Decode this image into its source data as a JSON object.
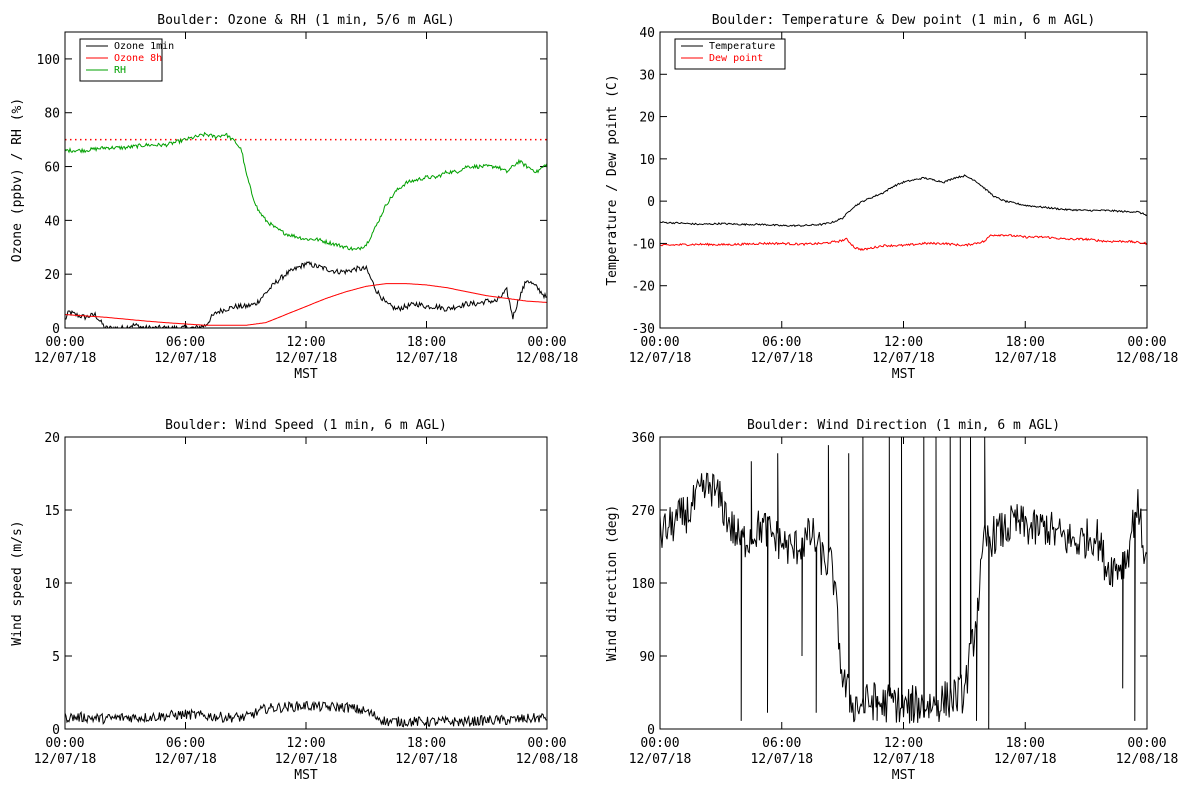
{
  "colors": {
    "black": "#000000",
    "red": "#ff0000",
    "green": "#00a000"
  },
  "x_axis": {
    "xlabel": "MST",
    "tick_times": [
      "00:00",
      "06:00",
      "12:00",
      "18:00",
      "00:00"
    ],
    "tick_dates": [
      "12/07/18",
      "12/07/18",
      "12/07/18",
      "12/07/18",
      "12/08/18"
    ],
    "xlim_hours": [
      0,
      24
    ]
  },
  "chart_data": [
    {
      "type": "line",
      "title": "Boulder: Ozone & RH (1 min, 5/6 m AGL)",
      "ylabel": "Ozone (ppbv) / RH (%)",
      "ylim": [
        0,
        110
      ],
      "yticks": [
        0,
        20,
        40,
        60,
        80,
        100
      ],
      "legend_position": "top-left",
      "reference_line": {
        "y": 70,
        "color": "#ff0000",
        "style": "dotted"
      },
      "series": [
        {
          "name": "Ozone 1min",
          "color": "#000000",
          "noise": 1.0,
          "x": [
            0,
            0.2,
            0.5,
            1.0,
            1.5,
            1.8,
            2.0,
            2.5,
            3.0,
            3.3,
            3.5,
            4.0,
            4.5,
            5.0,
            5.5,
            6.0,
            6.5,
            7.0,
            7.3,
            7.6,
            8.0,
            8.5,
            9.0,
            9.5,
            10.0,
            10.5,
            11.0,
            11.5,
            12.0,
            12.5,
            13.0,
            13.5,
            14.0,
            14.5,
            15.0,
            15.5,
            16.0,
            16.5,
            17.0,
            17.5,
            18.0,
            18.5,
            19.0,
            19.5,
            20.0,
            20.5,
            21.0,
            21.5,
            22.0,
            22.3,
            22.6,
            23.0,
            23.5,
            24.0
          ],
          "y": [
            3,
            6,
            5,
            4,
            5,
            2,
            0,
            0,
            0,
            1,
            1,
            0,
            0,
            0,
            0,
            0,
            0,
            1,
            4,
            6,
            7,
            8,
            8,
            9,
            13,
            17,
            20,
            22,
            24,
            23,
            22,
            21,
            21,
            22,
            22,
            14,
            9,
            7,
            8,
            9,
            8,
            8,
            7,
            8,
            9,
            9,
            10,
            10,
            14,
            4,
            11,
            18,
            15,
            11
          ]
        },
        {
          "name": "Ozone 8h",
          "color": "#ff0000",
          "noise": 0,
          "x": [
            0,
            1,
            2,
            3,
            4,
            5,
            6,
            7,
            8,
            9,
            10,
            11,
            12,
            13,
            14,
            15,
            16,
            17,
            18,
            19,
            20,
            21,
            22,
            23,
            24
          ],
          "y": [
            5,
            4.5,
            4,
            3.3,
            2.6,
            2,
            1.5,
            1,
            1,
            1,
            2,
            5,
            8,
            11,
            13.5,
            15.5,
            16.5,
            16.5,
            16,
            15,
            13.5,
            12,
            11,
            10,
            9.5
          ]
        },
        {
          "name": "RH",
          "color": "#00a000",
          "noise": 0.7,
          "x": [
            0,
            1,
            2,
            3,
            4,
            5,
            6,
            7,
            7.5,
            8,
            8.5,
            8.8,
            9.0,
            9.3,
            9.6,
            10,
            10.5,
            11,
            11.5,
            12,
            12.5,
            13,
            13.5,
            14,
            14.5,
            15,
            15.5,
            16,
            16.5,
            17,
            17.5,
            18,
            18.5,
            19,
            19.5,
            20,
            20.5,
            21,
            21.5,
            22,
            22.3,
            22.6,
            23,
            23.5,
            24
          ],
          "y": [
            66,
            66,
            67,
            67,
            68,
            68,
            70,
            72,
            71,
            72,
            69,
            66,
            58,
            50,
            44,
            40,
            37,
            35,
            34,
            33,
            33,
            32,
            31,
            30,
            29,
            31,
            38,
            46,
            51,
            54,
            55,
            56,
            56,
            58,
            58,
            60,
            60,
            60,
            60,
            58,
            60,
            62,
            60,
            58,
            61
          ]
        }
      ]
    },
    {
      "type": "line",
      "title": "Boulder: Temperature & Dew point (1 min, 6 m AGL)",
      "ylabel": "Temperature / Dew point (C)",
      "ylim": [
        -30,
        40
      ],
      "yticks": [
        -30,
        -20,
        -10,
        0,
        10,
        20,
        30,
        40
      ],
      "legend_position": "top-left",
      "series": [
        {
          "name": "Temperature",
          "color": "#000000",
          "noise": 0.2,
          "x": [
            0,
            1,
            2,
            3,
            4,
            5,
            6,
            7,
            8,
            8.5,
            9,
            9.5,
            10,
            10.5,
            11,
            11.5,
            12,
            12.5,
            13,
            13.5,
            14,
            14.5,
            15,
            15.5,
            16,
            16.5,
            17,
            17.5,
            18,
            19,
            20,
            21,
            22,
            23,
            23.5,
            24
          ],
          "y": [
            -5,
            -5.2,
            -5.5,
            -5.3,
            -5.5,
            -5.5,
            -5.8,
            -5.8,
            -5.5,
            -5,
            -4,
            -1.5,
            0,
            1,
            2,
            3.5,
            4.5,
            5,
            5.5,
            5,
            4.5,
            5.5,
            6,
            5,
            3,
            1,
            0,
            -0.5,
            -1,
            -1.5,
            -2,
            -2.2,
            -2.2,
            -2.5,
            -2.5,
            -3.3
          ]
        },
        {
          "name": "Dew point",
          "color": "#ff0000",
          "noise": 0.25,
          "x": [
            0,
            1,
            2,
            3,
            4,
            5,
            6,
            7,
            8,
            8.8,
            9.2,
            9.6,
            10,
            10.5,
            11,
            12,
            13,
            14,
            15,
            15.5,
            16,
            16.3,
            17,
            18,
            19,
            20,
            21,
            22,
            23,
            24
          ],
          "y": [
            -10.5,
            -10.3,
            -10.2,
            -10.3,
            -10.2,
            -10,
            -10,
            -10.2,
            -10,
            -9.5,
            -9,
            -11,
            -11.5,
            -11,
            -10.5,
            -10.5,
            -10,
            -10,
            -10.5,
            -10,
            -9.5,
            -8,
            -8,
            -8.5,
            -8.5,
            -9,
            -9,
            -9.5,
            -9.5,
            -10
          ]
        }
      ]
    },
    {
      "type": "line",
      "title": "Boulder: Wind Speed (1 min, 6 m AGL)",
      "ylabel": "Wind speed (m/s)",
      "ylim": [
        0,
        20
      ],
      "yticks": [
        0,
        5,
        10,
        15,
        20
      ],
      "series": [
        {
          "color": "#000000",
          "noise": 0.35,
          "clip_min": 0,
          "x": [
            0,
            1,
            2,
            3,
            4,
            5,
            6,
            7,
            8,
            9,
            10,
            11,
            12,
            13,
            14,
            15,
            16,
            17,
            18,
            19,
            20,
            21,
            22,
            23,
            24
          ],
          "y": [
            0.8,
            0.8,
            0.7,
            0.8,
            0.8,
            0.9,
            1.0,
            0.9,
            0.8,
            0.8,
            1.4,
            1.5,
            1.6,
            1.5,
            1.5,
            1.2,
            0.5,
            0.5,
            0.5,
            0.5,
            0.5,
            0.6,
            0.6,
            0.7,
            0.8
          ]
        }
      ]
    },
    {
      "type": "line",
      "title": "Boulder: Wind Direction (1 min, 6 m AGL)",
      "ylabel": "Wind direction (deg)",
      "ylim": [
        0,
        360
      ],
      "yticks": [
        0,
        90,
        180,
        270,
        360
      ],
      "series": [
        {
          "color": "#000000",
          "noise": 25,
          "clip_min": 0,
          "clip_max": 360,
          "x": [
            0,
            0.5,
            1,
            1.5,
            2,
            2.5,
            3,
            3.5,
            4,
            4.5,
            5,
            5.5,
            6,
            6.5,
            7,
            7.5,
            8,
            8.5,
            9,
            9.5,
            10,
            10.5,
            11,
            11.5,
            12,
            12.5,
            13,
            13.5,
            14,
            14.5,
            15,
            15.5,
            16,
            16.5,
            17,
            17.5,
            18,
            18.5,
            19,
            19.5,
            20,
            20.5,
            21,
            21.5,
            22,
            22.5,
            23,
            23.5,
            24
          ],
          "y": [
            240,
            250,
            260,
            270,
            290,
            300,
            280,
            250,
            230,
            240,
            250,
            240,
            230,
            220,
            230,
            240,
            210,
            200,
            60,
            30,
            30,
            35,
            30,
            35,
            25,
            30,
            30,
            30,
            35,
            40,
            45,
            120,
            230,
            240,
            245,
            255,
            250,
            245,
            250,
            240,
            235,
            230,
            235,
            240,
            200,
            200,
            210,
            280,
            200
          ],
          "spikes": [
            [
              4.0,
              10
            ],
            [
              4.5,
              330
            ],
            [
              5.3,
              20
            ],
            [
              5.8,
              340
            ],
            [
              7.0,
              90
            ],
            [
              7.7,
              20
            ],
            [
              8.3,
              350
            ],
            [
              9.3,
              340
            ],
            [
              10.0,
              360
            ],
            [
              10.7,
              10
            ],
            [
              11.3,
              360
            ],
            [
              11.9,
              360
            ],
            [
              12.4,
              10
            ],
            [
              13.0,
              360
            ],
            [
              13.6,
              360
            ],
            [
              14.3,
              360
            ],
            [
              14.8,
              360
            ],
            [
              15.3,
              360
            ],
            [
              15.6,
              10
            ],
            [
              16.0,
              360
            ],
            [
              16.2,
              0
            ],
            [
              22.8,
              50
            ],
            [
              23.4,
              10
            ]
          ]
        }
      ]
    }
  ]
}
